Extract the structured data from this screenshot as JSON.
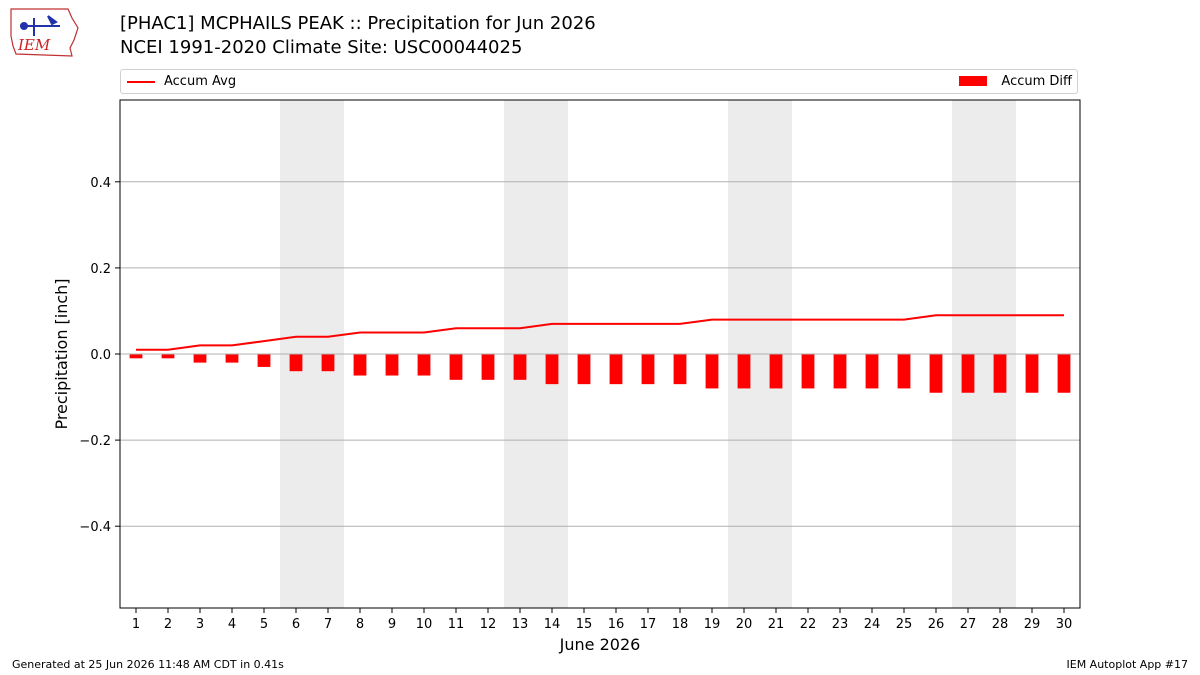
{
  "logo": {
    "text": "IEM"
  },
  "header": {
    "title_line1": "[PHAC1] MCPHAILS PEAK :: Precipitation for Jun 2026",
    "title_line2": "NCEI 1991-2020 Climate Site: USC00044025"
  },
  "legend": {
    "avg_label": "Accum Avg",
    "diff_label": "Accum Diff",
    "placement": "top, above plot"
  },
  "footer": {
    "generated": "Generated at 25 Jun 2026 11:48 AM CDT in 0.41s",
    "app": "IEM Autoplot App #17"
  },
  "colors": {
    "series": "#ff0000",
    "weekend_shade": "#ececec",
    "grid": "#b0b0b0"
  },
  "chart_data": {
    "type": "bar",
    "title": "[PHAC1] MCPHAILS PEAK :: Precipitation for Jun 2026",
    "subtitle": "NCEI 1991-2020 Climate Site: USC00044025",
    "xlabel": "June 2026",
    "ylabel": "Precipitation [inch]",
    "ylim": [
      -0.59,
      0.59
    ],
    "yticks": [
      -0.4,
      -0.2,
      0.0,
      0.2,
      0.4
    ],
    "ytick_labels": [
      "−0.4",
      "−0.2",
      "0.0",
      "0.2",
      "0.4"
    ],
    "categories": [
      "1",
      "2",
      "3",
      "4",
      "5",
      "6",
      "7",
      "8",
      "9",
      "10",
      "11",
      "12",
      "13",
      "14",
      "15",
      "16",
      "17",
      "18",
      "19",
      "20",
      "21",
      "22",
      "23",
      "24",
      "25",
      "26",
      "27",
      "28",
      "29",
      "30"
    ],
    "weekend_days": [
      6,
      7,
      13,
      14,
      20,
      21,
      27,
      28
    ],
    "grid": "horizontal",
    "series": [
      {
        "name": "Accum Diff",
        "type": "bar",
        "values": [
          -0.01,
          -0.01,
          -0.02,
          -0.02,
          -0.03,
          -0.04,
          -0.04,
          -0.05,
          -0.05,
          -0.05,
          -0.06,
          -0.06,
          -0.06,
          -0.07,
          -0.07,
          -0.07,
          -0.07,
          -0.07,
          -0.08,
          -0.08,
          -0.08,
          -0.08,
          -0.08,
          -0.08,
          -0.08,
          -0.09,
          -0.09,
          -0.09,
          -0.09,
          -0.09
        ]
      },
      {
        "name": "Accum Avg",
        "type": "line",
        "values": [
          0.01,
          0.01,
          0.02,
          0.02,
          0.03,
          0.04,
          0.04,
          0.05,
          0.05,
          0.05,
          0.06,
          0.06,
          0.06,
          0.07,
          0.07,
          0.07,
          0.07,
          0.07,
          0.08,
          0.08,
          0.08,
          0.08,
          0.08,
          0.08,
          0.08,
          0.09,
          0.09,
          0.09,
          0.09,
          0.09
        ]
      }
    ]
  }
}
